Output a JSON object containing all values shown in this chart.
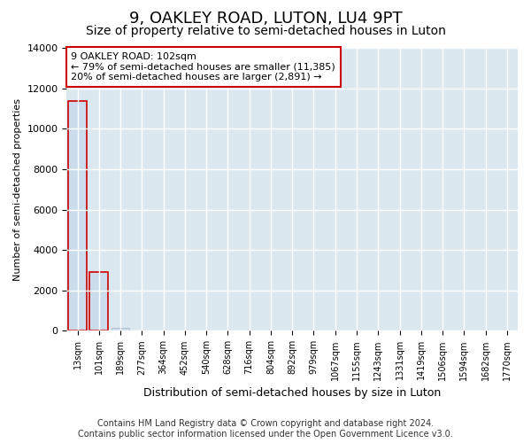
{
  "title": "9, OAKLEY ROAD, LUTON, LU4 9PT",
  "subtitle": "Size of property relative to semi-detached houses in Luton",
  "xlabel": "Distribution of semi-detached houses by size in Luton",
  "ylabel": "Number of semi-detached properties",
  "annotation_line1": "9 OAKLEY ROAD: 102sqm",
  "annotation_line2": "← 79% of semi-detached houses are smaller (11,385)",
  "annotation_line3": "20% of semi-detached houses are larger (2,891) →",
  "footer_line1": "Contains HM Land Registry data © Crown copyright and database right 2024.",
  "footer_line2": "Contains public sector information licensed under the Open Government Licence v3.0.",
  "bar_labels": [
    "13sqm",
    "101sqm",
    "189sqm",
    "277sqm",
    "364sqm",
    "452sqm",
    "540sqm",
    "628sqm",
    "716sqm",
    "804sqm",
    "892sqm",
    "979sqm",
    "1067sqm",
    "1155sqm",
    "1243sqm",
    "1331sqm",
    "1419sqm",
    "1506sqm",
    "1594sqm",
    "1682sqm",
    "1770sqm"
  ],
  "bar_values": [
    11385,
    2891,
    150,
    0,
    0,
    0,
    0,
    0,
    0,
    0,
    0,
    0,
    0,
    0,
    0,
    0,
    0,
    0,
    0,
    0,
    0
  ],
  "red_bar_indices": [
    0,
    1
  ],
  "bar_color": "#ccdcec",
  "bar_edge_color_normal": "#aabccc",
  "bar_edge_color_red": "#cc0000",
  "ylim": [
    0,
    14000
  ],
  "yticks": [
    0,
    2000,
    4000,
    6000,
    8000,
    10000,
    12000,
    14000
  ],
  "figure_bg_color": "#ffffff",
  "plot_bg_color": "#dce8f0",
  "grid_color": "#ffffff",
  "annotation_box_edge_color": "#cc0000",
  "annotation_box_face_color": "#ffffff",
  "title_fontsize": 13,
  "subtitle_fontsize": 10,
  "xlabel_fontsize": 9,
  "ylabel_fontsize": 8,
  "tick_fontsize": 8,
  "xtick_fontsize": 7,
  "annotation_fontsize": 8,
  "footer_fontsize": 7,
  "figsize": [
    6.0,
    5.0
  ],
  "dpi": 100
}
